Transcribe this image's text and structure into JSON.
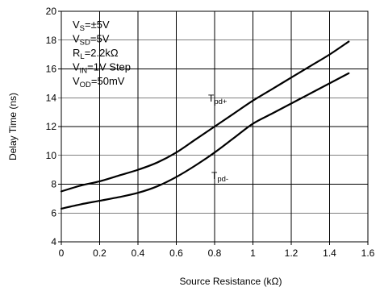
{
  "chart_data": {
    "type": "line",
    "title": "",
    "xlabel": "Source Resistance (kΩ)",
    "ylabel": "Delay Time (ns)",
    "xlim": [
      0,
      1.6
    ],
    "ylim": [
      4,
      20
    ],
    "grid": true,
    "x_ticks": [
      "0",
      "0.2",
      "0.4",
      "0.6",
      "0.8",
      "1",
      "1.2",
      "1.4",
      "1.6"
    ],
    "y_ticks": [
      "4",
      "6",
      "8",
      "10",
      "12",
      "14",
      "16",
      "18",
      "20"
    ],
    "conditions": [
      {
        "main": "V",
        "sub": "S",
        "rest": "=±5V"
      },
      {
        "main": "V",
        "sub": "SD",
        "rest": "=5V"
      },
      {
        "main": "R",
        "sub": "L",
        "rest": "=2.2kΩ"
      },
      {
        "main": "V",
        "sub": "IN",
        "rest": "=1V Step"
      },
      {
        "main": "V",
        "sub": "OD",
        "rest": "=50mV"
      }
    ],
    "series": [
      {
        "name": "Tpd+",
        "label_main": "T",
        "label_sub": "pd+",
        "x": [
          0,
          0.1,
          0.2,
          0.3,
          0.4,
          0.5,
          0.6,
          0.7,
          0.8,
          0.9,
          1.0,
          1.1,
          1.2,
          1.3,
          1.4,
          1.5
        ],
        "y": [
          7.5,
          7.9,
          8.2,
          8.6,
          9.0,
          9.5,
          10.2,
          11.1,
          12.0,
          12.9,
          13.8,
          14.6,
          15.4,
          16.2,
          17.0,
          17.9
        ]
      },
      {
        "name": "Tpd-",
        "label_main": "T",
        "label_sub": "pd-",
        "x": [
          0,
          0.1,
          0.2,
          0.3,
          0.4,
          0.5,
          0.6,
          0.7,
          0.8,
          0.9,
          1.0,
          1.1,
          1.2,
          1.3,
          1.4,
          1.5
        ],
        "y": [
          6.3,
          6.6,
          6.85,
          7.1,
          7.4,
          7.85,
          8.5,
          9.3,
          10.2,
          11.2,
          12.2,
          12.9,
          13.6,
          14.3,
          15.0,
          15.7
        ]
      }
    ]
  }
}
